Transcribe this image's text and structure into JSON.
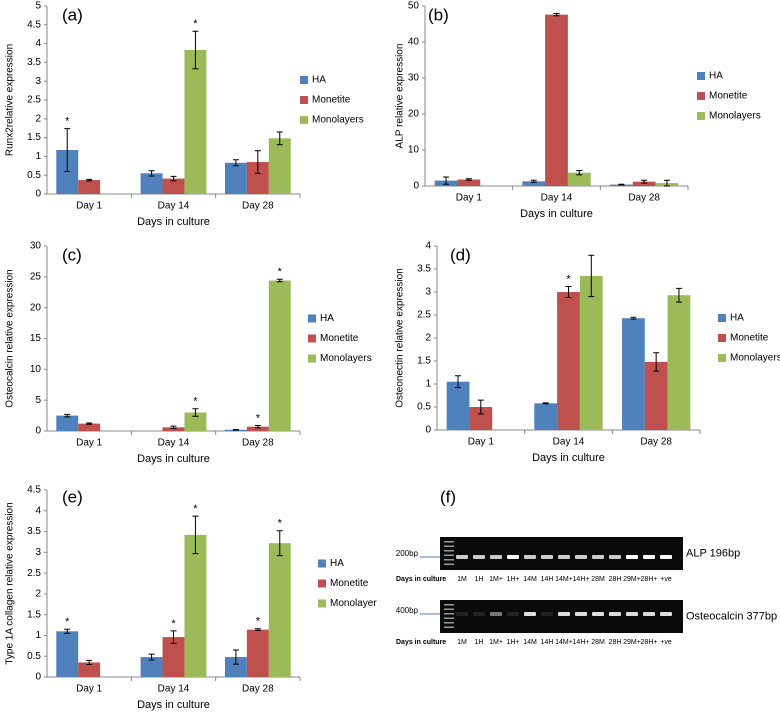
{
  "chart_data": [
    {
      "type": "bar",
      "panel_label": "(a)",
      "ylabel": "Runx2relative expression",
      "xlabel": "Days in culture",
      "categories": [
        "Day 1",
        "Day 14",
        "Day 28"
      ],
      "ylim": [
        0,
        5
      ],
      "yticks": [
        0,
        0.5,
        1,
        1.5,
        2,
        2.5,
        3,
        3.5,
        4,
        4.5,
        5
      ],
      "series": [
        {
          "name": "HA",
          "color": "#4f81bd",
          "values": [
            1.17,
            0.55,
            0.83
          ],
          "errors": [
            0.57,
            0.07,
            0.08
          ],
          "significance": [
            "*",
            null,
            null
          ]
        },
        {
          "name": "Monetite",
          "color": "#c0504d",
          "values": [
            0.37,
            0.41,
            0.85
          ],
          "errors": [
            0.02,
            0.06,
            0.3
          ],
          "significance": [
            null,
            null,
            null
          ]
        },
        {
          "name": "Monolayers",
          "color": "#9bbb59",
          "values": [
            null,
            3.83,
            1.48
          ],
          "errors": [
            null,
            0.5,
            0.17
          ],
          "significance": [
            null,
            "*",
            null
          ]
        }
      ]
    },
    {
      "type": "bar",
      "panel_label": "(b)",
      "ylabel": "ALP relative expression",
      "xlabel": "Days in culture",
      "categories": [
        "Day 1",
        "Day 14",
        "Day 28"
      ],
      "ylim": [
        0,
        50
      ],
      "yticks": [
        0,
        10,
        20,
        30,
        40,
        50
      ],
      "series": [
        {
          "name": "HA",
          "color": "#4f81bd",
          "values": [
            1.5,
            1.3,
            0.4
          ],
          "errors": [
            1,
            0.3,
            0.1
          ],
          "significance": [
            null,
            null,
            null
          ]
        },
        {
          "name": "Monetite",
          "color": "#c0504d",
          "values": [
            1.8,
            47.6,
            1.2
          ],
          "errors": [
            0.2,
            0.3,
            0.4
          ],
          "significance": [
            null,
            null,
            null
          ]
        },
        {
          "name": "Monolayers",
          "color": "#9bbb59",
          "values": [
            null,
            3.7,
            0.8
          ],
          "errors": [
            null,
            0.6,
            0.8
          ],
          "significance": [
            null,
            null,
            null
          ]
        }
      ]
    },
    {
      "type": "bar",
      "panel_label": "(c)",
      "ylabel": "Osteocalcin relative expression",
      "xlabel": "Days in culture",
      "categories": [
        "Day 1",
        "Day 14",
        "Day 28"
      ],
      "ylim": [
        0,
        30
      ],
      "yticks": [
        0,
        5,
        10,
        15,
        20,
        25,
        30
      ],
      "series": [
        {
          "name": "HA",
          "color": "#4f81bd",
          "values": [
            2.5,
            null,
            0.2
          ],
          "errors": [
            0.2,
            null,
            0.05
          ],
          "significance": [
            null,
            null,
            null
          ]
        },
        {
          "name": "Monetite",
          "color": "#c0504d",
          "values": [
            1.2,
            0.6,
            0.7
          ],
          "errors": [
            0.1,
            0.2,
            0.2
          ],
          "significance": [
            null,
            null,
            "*"
          ]
        },
        {
          "name": "Monolayers",
          "color": "#9bbb59",
          "values": [
            null,
            3.0,
            24.4
          ],
          "errors": [
            null,
            0.6,
            0.2
          ],
          "significance": [
            null,
            "*",
            "*"
          ]
        }
      ]
    },
    {
      "type": "bar",
      "panel_label": "(d)",
      "ylabel": "Osteonectin relative expression",
      "xlabel": "Days in culture",
      "categories": [
        "Day 1",
        "Day 14",
        "Day 28"
      ],
      "ylim": [
        0,
        4
      ],
      "yticks": [
        0,
        0.5,
        1,
        1.5,
        2,
        2.5,
        3,
        3.5,
        4
      ],
      "series": [
        {
          "name": "HA",
          "color": "#4f81bd",
          "values": [
            1.05,
            0.58,
            2.43
          ],
          "errors": [
            0.13,
            0.01,
            0.02
          ],
          "significance": [
            null,
            null,
            null
          ]
        },
        {
          "name": "Monetite",
          "color": "#c0504d",
          "values": [
            0.5,
            3.0,
            1.48
          ],
          "errors": [
            0.15,
            0.12,
            0.2
          ],
          "significance": [
            null,
            "*",
            null
          ]
        },
        {
          "name": "Monolayers",
          "color": "#9bbb59",
          "values": [
            null,
            3.35,
            2.93
          ],
          "errors": [
            null,
            0.45,
            0.15
          ],
          "significance": [
            null,
            null,
            null
          ]
        }
      ]
    },
    {
      "type": "bar",
      "panel_label": "(e)",
      "ylabel": "Type 1A collagen relative expression",
      "xlabel": "Days in culture",
      "categories": [
        "Day 1",
        "Day 14",
        "Day 28"
      ],
      "ylim": [
        0,
        4.5
      ],
      "yticks": [
        0,
        0.5,
        1,
        1.5,
        2,
        2.5,
        3,
        3.5,
        4,
        4.5
      ],
      "series": [
        {
          "name": "HA",
          "color": "#4f81bd",
          "values": [
            1.1,
            0.48,
            0.48
          ],
          "errors": [
            0.05,
            0.07,
            0.17
          ],
          "significance": [
            "*",
            null,
            null
          ]
        },
        {
          "name": "Monetite",
          "color": "#c0504d",
          "values": [
            0.35,
            0.96,
            1.14
          ],
          "errors": [
            0.05,
            0.15,
            0.02
          ],
          "significance": [
            null,
            "*",
            "*"
          ]
        },
        {
          "name": "Monolayer",
          "color": "#9bbb59",
          "values": [
            null,
            3.42,
            3.22
          ],
          "errors": [
            null,
            0.45,
            0.3
          ],
          "significance": [
            null,
            "*",
            "*"
          ]
        }
      ]
    }
  ],
  "gel": {
    "panel_label": "(f)",
    "gels": [
      {
        "marker": "200bp",
        "title": "ALP 196bp",
        "row_label": "Days in culture",
        "lanes": [
          "1M",
          "1H",
          "1M+",
          "1H+",
          "14M",
          "14H",
          "14M+",
          "14H+",
          "28M",
          "28H",
          "29M+",
          "28H+",
          "+ve"
        ]
      },
      {
        "marker": "400bp",
        "title": "Osteocalcin 377bp",
        "row_label": "Days in culture",
        "lanes": [
          "1M",
          "1H",
          "1M+",
          "1H+",
          "14M",
          "14H",
          "14M+",
          "14H+",
          "28M",
          "28H",
          "29M+",
          "28H+",
          "+ve"
        ]
      }
    ]
  }
}
